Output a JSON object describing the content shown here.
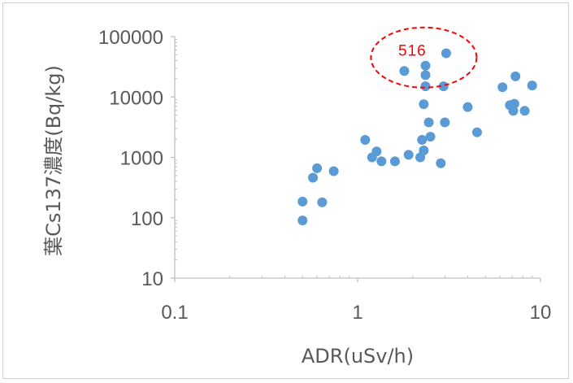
{
  "chart_data": {
    "type": "scatter",
    "xlabel": "ADR(uSv/h)",
    "ylabel": "葉Cs137濃度(Bq/kg)",
    "x_scale": "log",
    "y_scale": "log",
    "xlim": [
      0.1,
      10
    ],
    "ylim": [
      10,
      100000
    ],
    "x_ticks": [
      0.1,
      1,
      10
    ],
    "x_tick_labels": [
      "0.1",
      "1",
      "10"
    ],
    "y_ticks": [
      10,
      100,
      1000,
      10000,
      100000
    ],
    "y_tick_labels": [
      "10",
      "100",
      "1000",
      "10000",
      "100000"
    ],
    "grid": false,
    "legend": "none",
    "marker_color": "#5b9bd5",
    "series": [
      {
        "points": [
          [
            0.5,
            90
          ],
          [
            0.5,
            185
          ],
          [
            0.57,
            460
          ],
          [
            0.6,
            660
          ],
          [
            0.64,
            180
          ],
          [
            0.74,
            590
          ],
          [
            1.1,
            1950
          ],
          [
            1.2,
            1000
          ],
          [
            1.27,
            1250
          ],
          [
            1.35,
            860
          ],
          [
            1.6,
            860
          ],
          [
            1.9,
            1100
          ],
          [
            2.2,
            1000
          ],
          [
            2.25,
            1950
          ],
          [
            2.3,
            1300
          ],
          [
            2.3,
            7600
          ],
          [
            2.35,
            15000
          ],
          [
            2.35,
            23000
          ],
          [
            2.35,
            33000
          ],
          [
            2.45,
            3800
          ],
          [
            2.5,
            2200
          ],
          [
            2.85,
            800
          ],
          [
            2.95,
            15000
          ],
          [
            3.0,
            3800
          ],
          [
            1.8,
            27000
          ],
          [
            3.05,
            53000
          ],
          [
            4.0,
            6800
          ],
          [
            4.5,
            2600
          ],
          [
            6.2,
            14500
          ],
          [
            6.8,
            7300
          ],
          [
            7.1,
            5900
          ],
          [
            7.2,
            7700
          ],
          [
            7.3,
            22000
          ],
          [
            8.2,
            5900
          ],
          [
            9.0,
            15500
          ]
        ]
      }
    ],
    "annotation": {
      "text": "516",
      "color": "#ff0000",
      "style": "dashed-ellipse"
    }
  }
}
